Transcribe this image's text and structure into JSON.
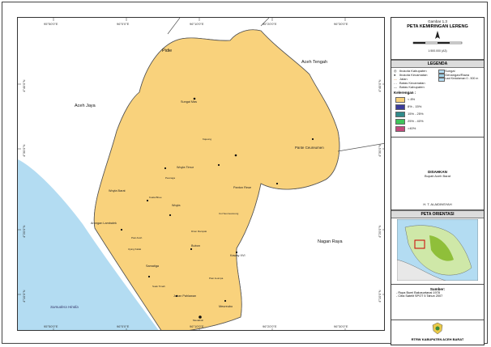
{
  "figure_number": "Gambar 1.3",
  "map_title": "PETA KEMIRINGAN LERENG",
  "scale_text": "1:500.000 (A3)",
  "grid": {
    "longitudes": [
      "95°50'0\"E",
      "96°0'0\"E",
      "96°10'0\"E",
      "96°20'0\"E",
      "96°30'0\"E"
    ],
    "latitudes": [
      "4°40'0\"N",
      "4°30'0\"N",
      "4°20'0\"N",
      "4°10'0\"N"
    ]
  },
  "map_labels": {
    "regions": [
      "Pidie",
      "Aceh Tengah",
      "Aceh Jaya",
      "Nagan Raya",
      "Samudera Hindia"
    ],
    "towns": [
      "Sungai Mas",
      "Panton Reue",
      "Woyla Timur",
      "Woyla Barat",
      "Woyla",
      "Kaway XVI",
      "Bubon",
      "Arongan Lambalek",
      "Samatiga",
      "Johan Pahlawan",
      "Meureubo",
      "Pante Ceureumen"
    ],
    "places": [
      "Kajeung",
      "Kuala Bhee",
      "Peunaga",
      "Drien Rampak",
      "Pasi Aceh",
      "Cot Seumeureung",
      "Ujung Kalak",
      "Suak Timah",
      "Pasi Jeumpa",
      "Meulaboh"
    ]
  },
  "legend": {
    "title": "LEGENDA",
    "items": [
      "Ibukota Kabupaten",
      "Ibukota Kecamatan",
      "Jalan",
      "Batas Kecamatan",
      "Batas Kabupaten",
      "Sungai",
      "Genangan/Rawa",
      "Laut Kedalaman 0 - 500 m"
    ],
    "slope_title": "Kelerengan :",
    "slope_classes": [
      {
        "label": "< 8%",
        "color": "#f9d27c"
      },
      {
        "label": "8% - 15%",
        "color": "#3b3b9a"
      },
      {
        "label": "15% - 25%",
        "color": "#2f8a8a"
      },
      {
        "label": "25% - 40%",
        "color": "#3ec45a"
      },
      {
        "label": ">40%",
        "color": "#c24a7c"
      }
    ]
  },
  "approval": {
    "label": "DISAHKAN",
    "office": "Bupati Aceh Barat",
    "signatory": "H. T. ALAIDINSYAH"
  },
  "inset": {
    "title": "PETA ORIENTASI"
  },
  "sources": {
    "title": "Sumber:",
    "items": [
      "- Rupa Bumi Bakosurtanal 1978",
      "- Citra Satelit SPOT 5 Tahun 2007"
    ]
  },
  "footer": "RTRW KABUPATEN ACEH BARAT",
  "colors": {
    "sea": "#b3dcf2",
    "land_outside": "#ffffff",
    "district_fill": "#f9d27c",
    "road": "#d97b2a",
    "boundary": "#555555"
  }
}
